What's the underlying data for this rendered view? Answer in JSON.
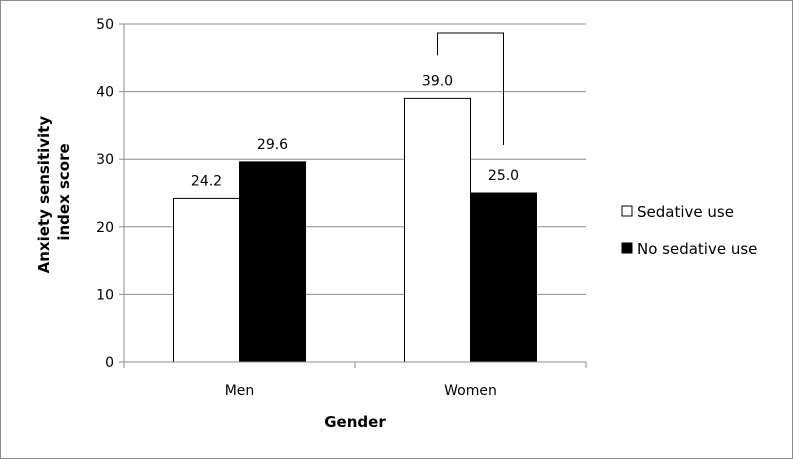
{
  "chart_data": {
    "type": "bar",
    "categories": [
      "Men",
      "Women"
    ],
    "series": [
      {
        "name": "Sedative use",
        "values": [
          24.2,
          39.0
        ],
        "labels": [
          "24.2",
          "39.0"
        ],
        "color": "#ffffff"
      },
      {
        "name": "No sedative use",
        "values": [
          29.6,
          25.0
        ],
        "labels": [
          "29.6",
          "25.0"
        ],
        "color": "#000000"
      }
    ],
    "xlabel": "Gender",
    "ylabel_lines": [
      "Anxiety sensitivity",
      "index score"
    ],
    "ylim": [
      0,
      50
    ],
    "yticks": [
      "0",
      "10",
      "20",
      "30",
      "40",
      "50"
    ],
    "grid": true,
    "legend_position": "right",
    "annotations": [
      {
        "type": "significance-bracket",
        "category": "Women",
        "between": [
          "Sedative use",
          "No sedative use"
        ]
      }
    ]
  }
}
